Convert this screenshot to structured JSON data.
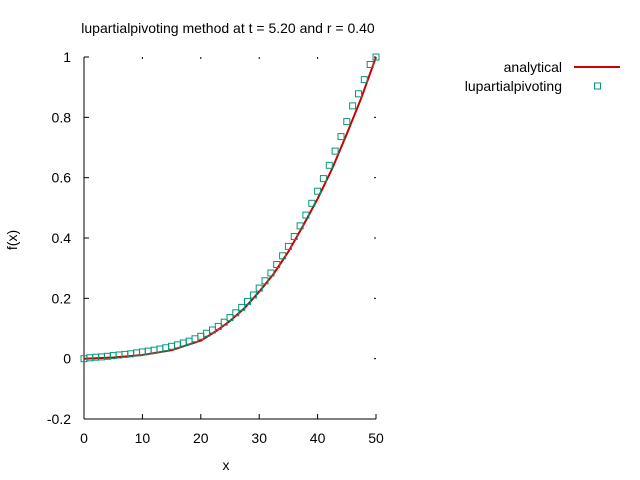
{
  "chart_data": {
    "type": "line",
    "title": "lupartialpivoting method at t = 5.20 and r = 0.40",
    "xlabel": "x",
    "ylabel": "f(x)",
    "xlim": [
      0,
      50
    ],
    "ylim": [
      -0.2,
      1
    ],
    "x_ticks": [
      "0",
      "10",
      "20",
      "30",
      "40",
      "50"
    ],
    "y_ticks": [
      "-0.2",
      "0",
      "0.2",
      "0.4",
      "0.6",
      "0.8",
      "1"
    ],
    "grid": "dotted tick marks",
    "legend": "top-right, outside plot",
    "series": [
      {
        "name": "analytical",
        "style": "line",
        "color": "#cc0000",
        "x": [
          0,
          5,
          10,
          15,
          20,
          22.5,
          25,
          27.5,
          30,
          32.5,
          35,
          37.5,
          40,
          42.5,
          45,
          47.5,
          50
        ],
        "y": [
          0,
          0.004,
          0.012,
          0.028,
          0.06,
          0.09,
          0.125,
          0.168,
          0.222,
          0.282,
          0.355,
          0.44,
          0.53,
          0.63,
          0.745,
          0.865,
          1.0
        ]
      },
      {
        "name": "lupartialpivoting",
        "style": "markers",
        "color": "#009977",
        "x": [
          0,
          1,
          2,
          3,
          4,
          5,
          6,
          7,
          8,
          9,
          10,
          11,
          12,
          13,
          14,
          15,
          16,
          17,
          18,
          19,
          20,
          21,
          22,
          23,
          24,
          25,
          26,
          27,
          28,
          29,
          30,
          31,
          32,
          33,
          34,
          35,
          36,
          37,
          38,
          39,
          40,
          41,
          42,
          43,
          44,
          45,
          46,
          47,
          48,
          49,
          50
        ],
        "y": [
          0,
          0.003,
          0.005,
          0.006,
          0.008,
          0.01,
          0.012,
          0.014,
          0.016,
          0.019,
          0.022,
          0.025,
          0.028,
          0.032,
          0.036,
          0.041,
          0.046,
          0.052,
          0.058,
          0.066,
          0.074,
          0.084,
          0.095,
          0.107,
          0.121,
          0.136,
          0.152,
          0.17,
          0.19,
          0.211,
          0.234,
          0.258,
          0.284,
          0.312,
          0.341,
          0.372,
          0.405,
          0.44,
          0.476,
          0.515,
          0.555,
          0.597,
          0.641,
          0.688,
          0.736,
          0.786,
          0.838,
          0.878,
          0.925,
          0.975,
          1.0
        ]
      }
    ]
  }
}
